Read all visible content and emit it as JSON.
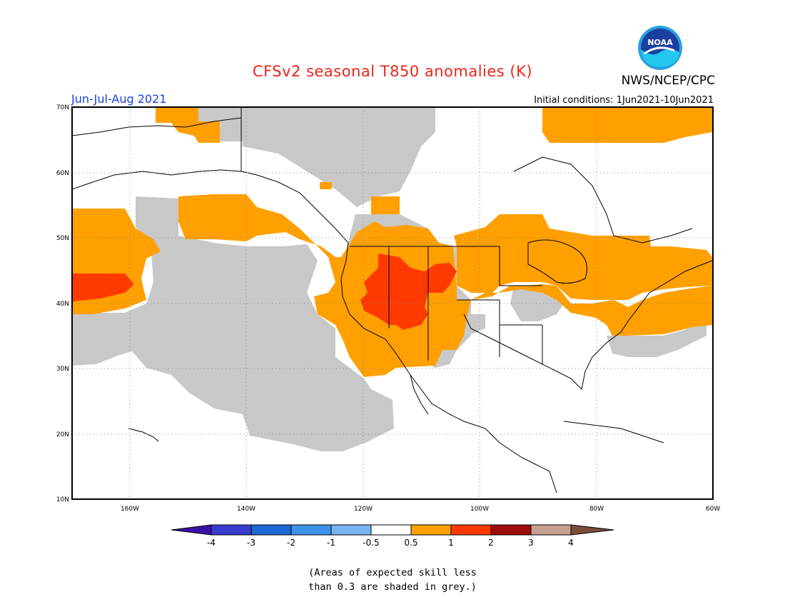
{
  "header": {
    "title": "CFSv2 seasonal T850 anomalies (K)",
    "agency": "NWS/NCEP/CPC",
    "season": "Jun-Jul-Aug 2021",
    "initial_conditions": "Initial conditions: 1Jun2021-10Jun2021",
    "logo_text": "NOAA"
  },
  "map": {
    "lat_labels": [
      "70N",
      "60N",
      "50N",
      "40N",
      "30N",
      "20N",
      "10N"
    ],
    "lon_labels": [
      "160W",
      "140W",
      "120W",
      "100W",
      "80W",
      "60W"
    ]
  },
  "colorbar": {
    "labels": [
      "-4",
      "-3",
      "-2",
      "-1",
      "-0.5",
      "0.5",
      "1",
      "2",
      "3",
      "4"
    ],
    "colors": [
      "#3a11a8",
      "#3a3ccf",
      "#1c68d4",
      "#3c93ea",
      "#78b5f0",
      "#ffffff",
      "#ffa000",
      "#ff3a00",
      "#a00c0c",
      "#c8a090",
      "#7a4e3a"
    ]
  },
  "note": {
    "line1": "(Areas of expected skill less",
    "line2": "than 0.3 are shaded in grey.)"
  },
  "colors": {
    "grey": "#c8c8c8",
    "orange": "#ffa000",
    "red": "#ff3a00"
  }
}
